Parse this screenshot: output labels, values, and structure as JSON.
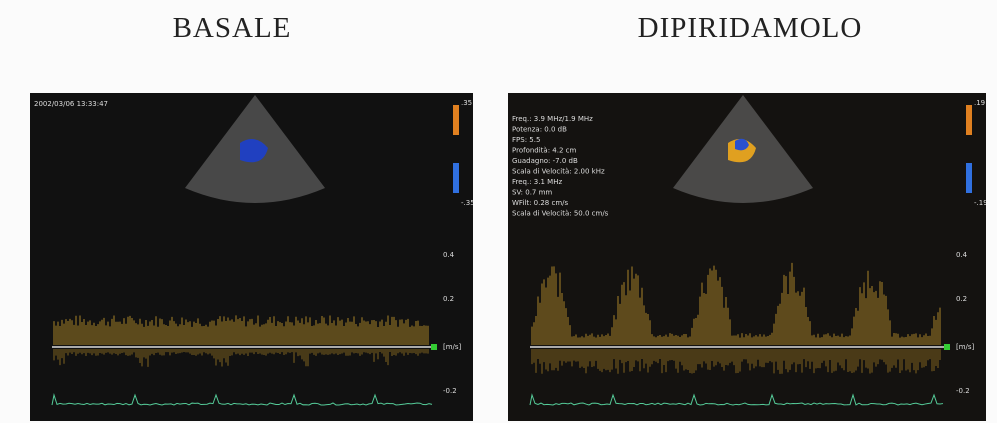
{
  "left": {
    "title": "BASALE",
    "timestamp": "2002/03/06 13:33:47",
    "color_scale": [
      ".35",
      "-.35"
    ],
    "velocity_labels": [
      "0.4",
      "0.2",
      "[m/s]",
      "-0.2"
    ]
  },
  "right": {
    "title": "DIPIRIDAMOLO",
    "settings": [
      "Freq.: 3.9 MHz/1.9 MHz",
      "Potenza: 0.0 dB",
      "FPS: 5.5",
      "Profondità: 4.2 cm",
      "Guadagno: -7.0 dB",
      "Scala di Velocità: 2.00 kHz",
      "Freq.: 3.1 MHz",
      "SV: 0.7 mm",
      "WFilt: 0.28 cm/s",
      "Scala di Velocità: 50.0 cm/s"
    ],
    "color_scale": [
      ".19",
      "-.19"
    ],
    "velocity_labels": [
      "0.4",
      "0.2",
      "[m/s]",
      "-0.2"
    ]
  }
}
